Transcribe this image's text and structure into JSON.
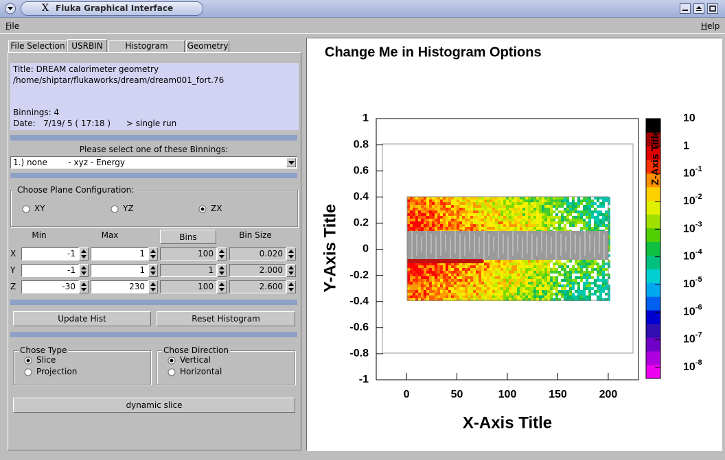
{
  "window": {
    "icon": "X",
    "title": "Fluka Graphical Interface"
  },
  "menu": [
    "File",
    "Help"
  ],
  "tabs": [
    {
      "label": "File Selection",
      "active": false
    },
    {
      "label": "USRBIN",
      "active": true
    },
    {
      "label": "Histogram Options",
      "active": false
    },
    {
      "label": "Geometry",
      "active": false
    }
  ],
  "info": {
    "lines": [
      "Title: DREAM calorimeter geometry",
      "/home/shiptar/flukaworks/dream/dream001_fort.76",
      "Binnings: 4",
      "Date:   7/19/ 5 ( 17:18 )      > single run"
    ]
  },
  "binning": {
    "prompt": "Please select one of these Binnings:",
    "selected": "1.) none        - xyz - Energy"
  },
  "plane": {
    "legend": "Choose Plane Configuration:",
    "options": [
      {
        "label": "XY",
        "selected": false
      },
      {
        "label": "YZ",
        "selected": false
      },
      {
        "label": "ZX",
        "selected": true
      }
    ]
  },
  "bins_table": {
    "headers": [
      "Min",
      "Max",
      "Bins",
      "Bin Size"
    ],
    "rows": [
      {
        "axis": "X",
        "min": "-1",
        "max": "1",
        "bins": "100",
        "bin_size": "0.020"
      },
      {
        "axis": "Y",
        "min": "-1",
        "max": "1",
        "bins": "1",
        "bin_size": "2.000"
      },
      {
        "axis": "Z",
        "min": "-30",
        "max": "230",
        "bins": "100",
        "bin_size": "2.600"
      }
    ]
  },
  "buttons": {
    "update": "Update Hist",
    "reset": "Reset Histogram",
    "dynamic": "dynamic slice"
  },
  "type_group": {
    "legend": "Chose Type",
    "options": [
      {
        "label": "Slice",
        "selected": true
      },
      {
        "label": "Projection",
        "selected": false
      }
    ]
  },
  "direction_group": {
    "legend": "Chose Direction",
    "options": [
      {
        "label": "Vertical",
        "selected": true
      },
      {
        "label": "Horizontal",
        "selected": false
      }
    ]
  },
  "plot": {
    "title": "Change Me in Histogram Options",
    "x_title": "X-Axis Title",
    "y_title": "Y-Axis Title",
    "z_title": "Z-Axis Title",
    "xlim": [
      -30,
      230
    ],
    "xticks": [
      0,
      50,
      100,
      150,
      200
    ],
    "ylim": [
      -1,
      1
    ],
    "yticks": [
      -1,
      -0.8,
      -0.6,
      -0.4,
      -0.2,
      0,
      0.2,
      0.4,
      0.6,
      0.8,
      1
    ],
    "zscale": "log",
    "zlim": [
      4e-09,
      10
    ],
    "zticks": [
      {
        "value": 10,
        "label": "10"
      },
      {
        "value": 1,
        "label": "1"
      },
      {
        "value": 0.1,
        "label": "10",
        "exponent": "-1"
      },
      {
        "value": 0.01,
        "label": "10",
        "exponent": "-2"
      },
      {
        "value": 0.001,
        "label": "10",
        "exponent": "-3"
      },
      {
        "value": 0.0001,
        "label": "10",
        "exponent": "-4"
      },
      {
        "value": 1e-05,
        "label": "10",
        "exponent": "-5"
      },
      {
        "value": 1e-06,
        "label": "10",
        "exponent": "-6"
      },
      {
        "value": 1e-07,
        "label": "10",
        "exponent": "-7"
      },
      {
        "value": 1e-08,
        "label": "10",
        "exponent": "-8"
      }
    ]
  }
}
